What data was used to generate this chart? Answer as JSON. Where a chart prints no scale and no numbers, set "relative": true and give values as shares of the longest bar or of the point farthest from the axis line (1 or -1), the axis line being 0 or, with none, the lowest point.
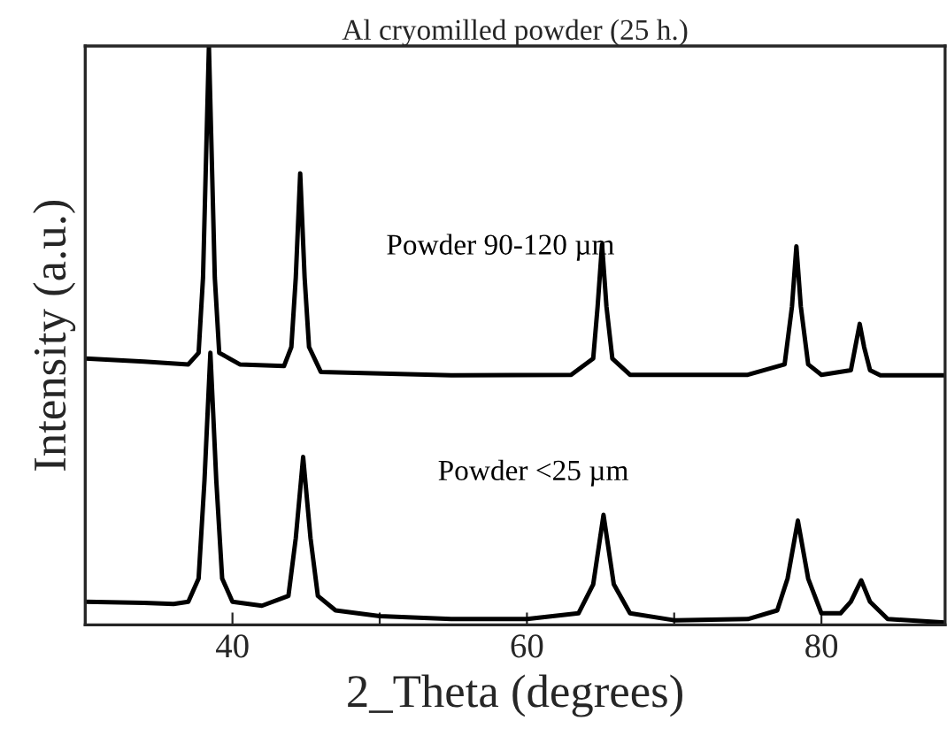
{
  "chart_data": {
    "type": "line",
    "title": "Al cryomilled powder (25 h.)",
    "xlabel": "2_Theta (degrees)",
    "ylabel": "Intensity (a.u.)",
    "relative": true,
    "xlim": [
      30,
      88.4
    ],
    "xticks": [
      40,
      {
        "value": 50,
        "label": null
      },
      60,
      {
        "value": 70,
        "label": null
      },
      80
    ],
    "grid": false,
    "legend": false,
    "marker": "none",
    "line_style": "solid",
    "series": [
      {
        "name": "Powder <25 µm",
        "color": "#000000",
        "x": [
          30,
          34,
          36,
          37,
          37.7,
          38.1,
          38.5,
          38.9,
          39.3,
          40,
          42,
          43.8,
          44.3,
          44.8,
          45.3,
          45.8,
          47,
          50,
          55,
          60,
          63.5,
          64.5,
          65.2,
          65.9,
          67,
          70,
          75,
          77,
          77.7,
          78.4,
          79.1,
          80,
          81.3,
          82,
          82.7,
          83.3,
          84.5,
          88.4
        ],
        "values": [
          0.04,
          0.038,
          0.036,
          0.04,
          0.08,
          0.25,
          0.47,
          0.25,
          0.08,
          0.04,
          0.033,
          0.05,
          0.15,
          0.29,
          0.15,
          0.05,
          0.025,
          0.015,
          0.01,
          0.01,
          0.02,
          0.07,
          0.19,
          0.07,
          0.02,
          0.008,
          0.01,
          0.025,
          0.08,
          0.18,
          0.08,
          0.02,
          0.02,
          0.04,
          0.077,
          0.04,
          0.01,
          0.004
        ]
      },
      {
        "name": "Powder 90-120 µm",
        "color": "#000000",
        "x": [
          30,
          34,
          37,
          37.7,
          38.0,
          38.4,
          38.8,
          39.1,
          40.5,
          43.5,
          44.0,
          44.3,
          44.6,
          44.9,
          45.2,
          46,
          55,
          63,
          64.5,
          64.8,
          65.1,
          65.4,
          65.8,
          67,
          75,
          77.5,
          78.0,
          78.3,
          78.6,
          79.1,
          80,
          82.0,
          82.3,
          82.6,
          82.9,
          83.3,
          84,
          88.4
        ],
        "values": [
          0.46,
          0.455,
          0.45,
          0.47,
          0.6,
          1.0,
          0.6,
          0.47,
          0.45,
          0.447,
          0.48,
          0.6,
          0.78,
          0.6,
          0.48,
          0.437,
          0.431,
          0.432,
          0.46,
          0.55,
          0.657,
          0.55,
          0.46,
          0.432,
          0.432,
          0.45,
          0.55,
          0.654,
          0.55,
          0.45,
          0.432,
          0.44,
          0.48,
          0.52,
          0.48,
          0.44,
          0.431,
          0.431
        ]
      }
    ]
  }
}
